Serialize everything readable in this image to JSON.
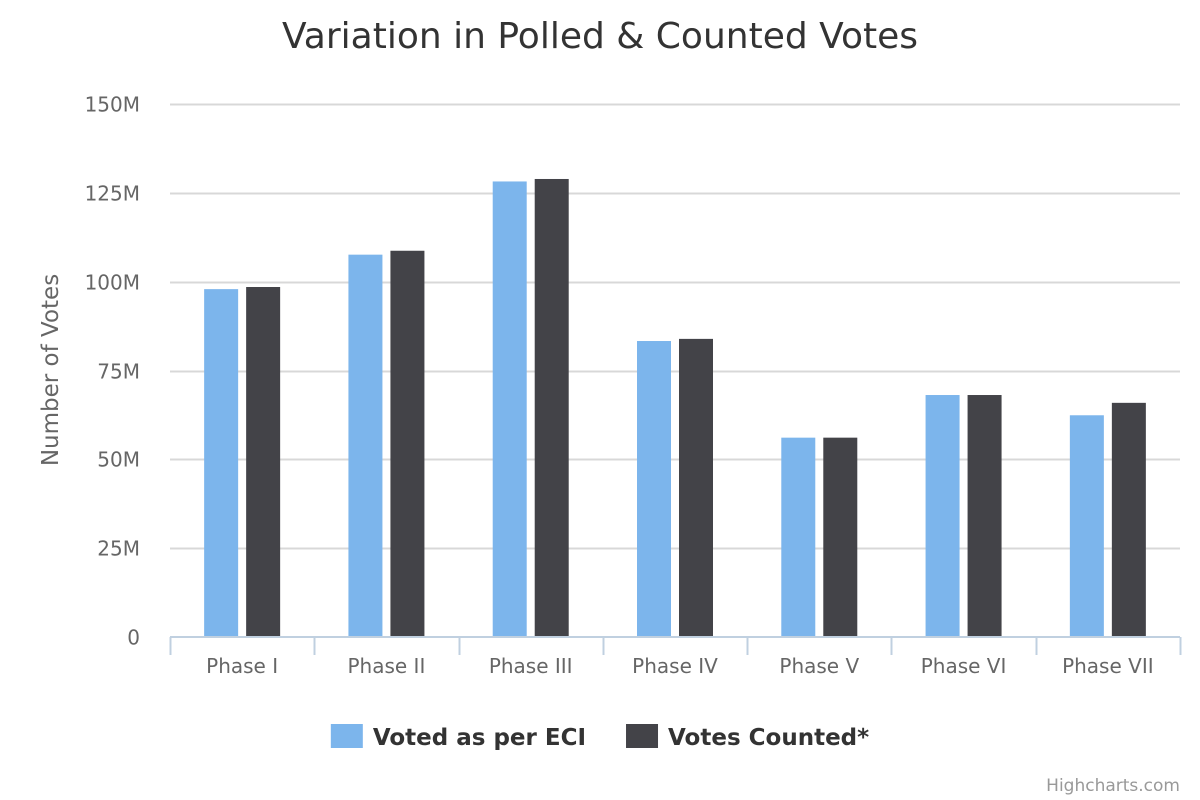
{
  "chart_data": {
    "type": "bar",
    "orientation": "vertical",
    "title": "Variation in Polled & Counted Votes",
    "ylabel": "Number of Votes",
    "xlabel": "",
    "categories": [
      "Phase I",
      "Phase II",
      "Phase III",
      "Phase IV",
      "Phase V",
      "Phase VI",
      "Phase VII"
    ],
    "ylim": [
      0,
      150000000
    ],
    "yticks": [
      0,
      25000000,
      50000000,
      75000000,
      100000000,
      125000000,
      150000000
    ],
    "ytick_labels": [
      "0",
      "25M",
      "50M",
      "75M",
      "100M",
      "125M",
      "150M"
    ],
    "grid": true,
    "legend_position": "bottom-center",
    "series": [
      {
        "name": "Voted as per ECI",
        "color": "#7cb5ec",
        "values": [
          97900000,
          107600000,
          128200000,
          83300000,
          56100000,
          68100000,
          62400000
        ]
      },
      {
        "name": "Votes Counted*",
        "color": "#434348",
        "values": [
          98500000,
          108700000,
          128900000,
          83900000,
          56100000,
          68100000,
          65900000
        ]
      }
    ],
    "credits": "Highcharts.com"
  }
}
